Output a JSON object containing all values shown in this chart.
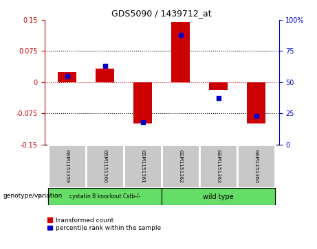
{
  "title": "GDS5090 / 1439712_at",
  "samples": [
    "GSM1151359",
    "GSM1151360",
    "GSM1151361",
    "GSM1151362",
    "GSM1151363",
    "GSM1151364"
  ],
  "red_bars": [
    0.025,
    0.032,
    -0.1,
    0.145,
    -0.018,
    -0.1
  ],
  "blue_dots_pct": [
    55,
    63,
    18,
    88,
    37,
    23
  ],
  "ylim_left": [
    -0.15,
    0.15
  ],
  "ylim_right": [
    0,
    100
  ],
  "yticks_left": [
    -0.15,
    -0.075,
    0,
    0.075,
    0.15
  ],
  "yticks_right": [
    0,
    25,
    50,
    75,
    100
  ],
  "hlines_black": [
    0.075,
    -0.075
  ],
  "hline_red": 0.0,
  "group1_label": "cystatin B knockout Cstb-/-",
  "group2_label": "wild type",
  "group1_indices": [
    0,
    1,
    2
  ],
  "group2_indices": [
    3,
    4,
    5
  ],
  "genotype_label": "genotype/variation",
  "legend_red": "transformed count",
  "legend_blue": "percentile rank within the sample",
  "bar_color": "#cc0000",
  "dot_color": "#0000cc",
  "group_bg": "#66dd66",
  "sample_box_bg": "#c8c8c8",
  "bar_width": 0.5,
  "dot_size": 25,
  "left_color": "#cc0000",
  "right_color": "#0000cc"
}
